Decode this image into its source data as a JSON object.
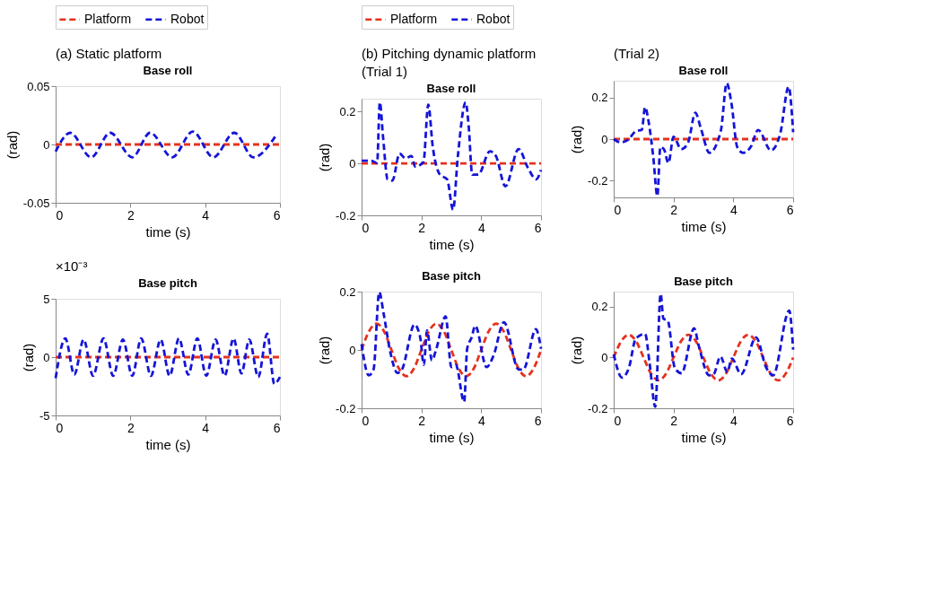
{
  "chart_data": [
    {
      "type": "line",
      "title": "Base roll",
      "xlabel": "time (s)",
      "ylabel": "(rad)",
      "annotations": [
        "(a) Static platform"
      ],
      "legend": "top",
      "xlim": [
        0,
        6
      ],
      "xticks": [
        0,
        2,
        4,
        6
      ],
      "ylim": [
        -0.05,
        0.05
      ],
      "yticks": [
        -0.05,
        0,
        0.05
      ],
      "series": [
        {
          "name": "Platform",
          "color": "#e5321e",
          "line_style": "dashed",
          "x": [
            0,
            6
          ],
          "values": [
            0,
            0
          ]
        },
        {
          "name": "Robot",
          "color": "#1414d8",
          "line_style": "dashed",
          "x": [
            0,
            0.39,
            0.95,
            1.46,
            2.05,
            2.53,
            3.12,
            3.67,
            4.22,
            4.78,
            5.29,
            5.9
          ],
          "values": [
            -0.006,
            0.01,
            -0.011,
            0.01,
            -0.011,
            0.01,
            -0.011,
            0.011,
            -0.011,
            0.01,
            -0.011,
            0.008
          ]
        }
      ]
    },
    {
      "type": "line",
      "title": "Base pitch",
      "xlabel": "time (s)",
      "ylabel": "(rad)",
      "annotations": [
        "×10⁻³"
      ],
      "xlim": [
        0,
        6
      ],
      "xticks": [
        0,
        2,
        4,
        6
      ],
      "ylim": [
        -5,
        5
      ],
      "yticks": [
        -5,
        0,
        5
      ],
      "series": [
        {
          "color": "#e5321e",
          "line_style": "dashed",
          "x": [
            0,
            6
          ],
          "values": [
            0,
            0
          ]
        },
        {
          "color": "#1414d8",
          "line_style": "dashed",
          "x": [
            0,
            0.26,
            0.5,
            0.75,
            1.0,
            1.28,
            1.54,
            1.8,
            2.05,
            2.29,
            2.55,
            2.81,
            3.05,
            3.3,
            3.55,
            3.79,
            4.03,
            4.28,
            4.52,
            4.76,
            4.97,
            5.18,
            5.42,
            5.66,
            5.85,
            6.0
          ],
          "values": [
            -1.8,
            1.6,
            -1.5,
            1.5,
            -1.6,
            1.6,
            -1.6,
            1.5,
            -1.6,
            1.6,
            -1.6,
            1.5,
            -1.6,
            1.6,
            -1.5,
            1.6,
            -1.6,
            1.5,
            -1.6,
            1.6,
            -1.4,
            1.5,
            -1.7,
            2.0,
            -2.3,
            -1.7
          ]
        }
      ]
    },
    {
      "type": "line",
      "title": "Base roll",
      "xlabel": "time (s)",
      "ylabel": "(rad)",
      "annotations": [
        "(b) Pitching dynamic platform",
        "(Trial 1)"
      ],
      "legend": "top",
      "xlim": [
        0,
        6
      ],
      "xticks": [
        0,
        2,
        4,
        6
      ],
      "ylim": [
        -0.2,
        0.25
      ],
      "yticks": [
        -0.2,
        0,
        0.2
      ],
      "series": [
        {
          "name": "Platform",
          "color": "#e5321e",
          "line_style": "dashed",
          "x": [
            0,
            6
          ],
          "values": [
            0,
            0
          ]
        },
        {
          "name": "Robot",
          "color": "#1414d8",
          "line_style": "dashed",
          "x": [
            0,
            0.32,
            0.52,
            0.61,
            0.72,
            0.87,
            1.03,
            1.27,
            1.47,
            1.67,
            1.79,
            2.07,
            2.23,
            2.38,
            2.62,
            2.86,
            3.06,
            3.22,
            3.48,
            3.58,
            3.7,
            3.9,
            4.29,
            4.49,
            4.81,
            5.25,
            5.56,
            5.84,
            6.0
          ],
          "values": [
            0.011,
            0.011,
            0.002,
            0.236,
            0.1,
            -0.061,
            -0.066,
            0.038,
            0.02,
            0.029,
            -0.012,
            0.006,
            0.227,
            0.065,
            -0.043,
            -0.061,
            -0.178,
            0.029,
            0.236,
            0.146,
            -0.043,
            -0.043,
            0.047,
            0.029,
            -0.088,
            0.056,
            -0.016,
            -0.061,
            -0.025
          ]
        }
      ]
    },
    {
      "type": "line",
      "title": "Base roll",
      "xlabel": "time (s)",
      "ylabel": "(rad)",
      "annotations": [
        "(Trial 2)"
      ],
      "xlim": [
        0,
        6
      ],
      "xticks": [
        0,
        2,
        4,
        6
      ],
      "ylim": [
        -0.28,
        0.28
      ],
      "yticks": [
        -0.2,
        0,
        0.2
      ],
      "series": [
        {
          "color": "#e5321e",
          "line_style": "dashed",
          "x": [
            0,
            6
          ],
          "values": [
            0,
            0
          ]
        },
        {
          "color": "#1414d8",
          "line_style": "dashed",
          "x": [
            0,
            0.23,
            0.47,
            0.74,
            0.94,
            1.05,
            1.17,
            1.32,
            1.46,
            1.56,
            1.68,
            1.83,
            2.0,
            2.26,
            2.49,
            2.73,
            2.92,
            3.2,
            3.58,
            3.78,
            3.94,
            4.13,
            4.33,
            4.6,
            4.83,
            5.26,
            5.57,
            5.85,
            6.0
          ],
          "values": [
            0,
            -0.016,
            -0.005,
            0.038,
            0.044,
            0.153,
            0.082,
            -0.082,
            -0.273,
            -0.038,
            -0.049,
            -0.115,
            0.011,
            -0.049,
            -0.016,
            0.126,
            0.049,
            -0.066,
            0.038,
            0.268,
            0.169,
            -0.038,
            -0.066,
            -0.033,
            0.044,
            -0.055,
            0.027,
            0.251,
            0.033
          ]
        }
      ]
    },
    {
      "type": "line",
      "title": "Base pitch",
      "xlabel": "time (s)",
      "ylabel": "(rad)",
      "xlim": [
        0,
        6
      ],
      "xticks": [
        0,
        2,
        4,
        6
      ],
      "ylim": [
        -0.2,
        0.2
      ],
      "yticks": [
        -0.2,
        0,
        0.2
      ],
      "series": [
        {
          "color": "#e5321e",
          "line_style": "dashed",
          "x": [
            0,
            0.25,
            0.5,
            0.75,
            1.0,
            1.25,
            1.5,
            1.75,
            2.0,
            2.25,
            2.5,
            2.75,
            3.0,
            3.25,
            3.5,
            3.75,
            4.0,
            4.25,
            4.5,
            4.75,
            5.0,
            5.25,
            5.5,
            5.75,
            6.0
          ],
          "values": [
            0,
            0.064,
            0.09,
            0.064,
            0,
            -0.064,
            -0.09,
            -0.064,
            0,
            0.064,
            0.09,
            0.064,
            0,
            -0.064,
            -0.09,
            -0.064,
            0,
            0.064,
            0.09,
            0.064,
            0,
            -0.064,
            -0.09,
            -0.064,
            0
          ]
        },
        {
          "color": "#1414d8",
          "line_style": "dashed",
          "x": [
            0,
            0.24,
            0.4,
            0.59,
            0.74,
            0.97,
            1.2,
            1.35,
            1.77,
            1.96,
            2.08,
            2.19,
            2.35,
            2.5,
            2.81,
            3.0,
            3.15,
            3.43,
            3.53,
            3.68,
            3.8,
            4.18,
            4.41,
            4.76,
            5.25,
            5.41,
            5.83,
            6.0
          ],
          "values": [
            0.02,
            -0.087,
            -0.067,
            0.198,
            0.123,
            -0.012,
            -0.079,
            -0.067,
            0.087,
            0.043,
            -0.051,
            0.067,
            -0.036,
            0.004,
            0.115,
            -0.059,
            -0.051,
            -0.178,
            0.004,
            0.043,
            0.083,
            -0.059,
            -0.02,
            0.095,
            -0.067,
            -0.067,
            0.071,
            0.004
          ]
        }
      ]
    },
    {
      "type": "line",
      "title": "Base pitch",
      "xlabel": "time (s)",
      "ylabel": "(rad)",
      "xlim": [
        0,
        6
      ],
      "xticks": [
        0,
        2,
        4,
        6
      ],
      "ylim": [
        -0.2,
        0.26
      ],
      "yticks": [
        -0.2,
        0,
        0.2
      ],
      "series": [
        {
          "color": "#e5321e",
          "line_style": "dashed",
          "x": [
            0,
            0.25,
            0.5,
            0.75,
            1.0,
            1.25,
            1.5,
            1.75,
            2.0,
            2.25,
            2.5,
            2.75,
            3.0,
            3.25,
            3.5,
            3.75,
            4.0,
            4.25,
            4.5,
            4.75,
            5.0,
            5.25,
            5.5,
            5.75,
            6.0
          ],
          "values": [
            0,
            0.064,
            0.09,
            0.064,
            0,
            -0.064,
            -0.09,
            -0.064,
            0,
            0.064,
            0.09,
            0.064,
            0,
            -0.064,
            -0.09,
            -0.064,
            0,
            0.064,
            0.09,
            0.064,
            0,
            -0.064,
            -0.09,
            -0.064,
            0
          ]
        },
        {
          "color": "#1414d8",
          "line_style": "dashed",
          "x": [
            0,
            0.28,
            0.51,
            0.74,
            1.05,
            1.2,
            1.39,
            1.57,
            1.66,
            1.81,
            2.04,
            2.27,
            2.69,
            2.84,
            3.19,
            3.34,
            3.57,
            3.8,
            3.95,
            4.26,
            4.76,
            5.1,
            5.33,
            5.87,
            6.0
          ],
          "values": [
            0.013,
            -0.079,
            -0.04,
            0.075,
            0.093,
            -0.022,
            -0.194,
            0.251,
            0.154,
            0.145,
            -0.04,
            -0.062,
            0.115,
            0.048,
            -0.07,
            -0.066,
            0.004,
            -0.057,
            -0.004,
            -0.066,
            0.079,
            -0.04,
            -0.07,
            0.185,
            0.031
          ]
        }
      ]
    }
  ]
}
